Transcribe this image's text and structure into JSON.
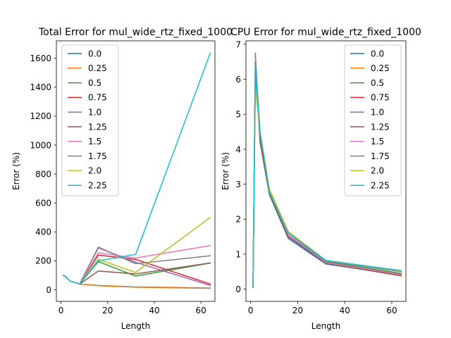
{
  "chart_data": [
    {
      "type": "line",
      "title": "Total Error for mul_wide_rtz_fixed_1000",
      "xlabel": "Length",
      "ylabel": "Error (%)",
      "xlim": [
        -2,
        66
      ],
      "ylim": [
        -80,
        1720
      ],
      "xticks": [
        0,
        20,
        40,
        60
      ],
      "yticks": [
        0,
        200,
        400,
        600,
        800,
        1000,
        1200,
        1400,
        1600
      ],
      "legend_position": "top-left",
      "x": [
        1,
        2,
        4,
        8,
        16,
        32,
        64
      ],
      "series": [
        {
          "name": "0.0",
          "color": "#1f77b4",
          "values": [
            100,
            90,
            60,
            40,
            30,
            20,
            12
          ]
        },
        {
          "name": "0.25",
          "color": "#ff7f0e",
          "values": [
            100,
            90,
            60,
            40,
            28,
            18,
            10
          ]
        },
        {
          "name": "0.5",
          "color": "#2ca02c",
          "values": [
            100,
            90,
            60,
            40,
            195,
            95,
            185
          ]
        },
        {
          "name": "0.75",
          "color": "#d62728",
          "values": [
            100,
            90,
            60,
            40,
            240,
            210,
            40
          ]
        },
        {
          "name": "1.0",
          "color": "#9467bd",
          "values": [
            100,
            90,
            60,
            40,
            290,
            190,
            30
          ]
        },
        {
          "name": "1.25",
          "color": "#8c564b",
          "values": [
            100,
            90,
            60,
            40,
            130,
            110,
            185
          ]
        },
        {
          "name": "1.5",
          "color": "#e377c2",
          "values": [
            100,
            90,
            60,
            40,
            255,
            220,
            305
          ]
        },
        {
          "name": "1.75",
          "color": "#7f7f7f",
          "values": [
            100,
            90,
            60,
            40,
            295,
            180,
            235
          ]
        },
        {
          "name": "2.0",
          "color": "#bcbd22",
          "values": [
            100,
            90,
            60,
            40,
            210,
            120,
            500
          ]
        },
        {
          "name": "2.25",
          "color": "#17becf",
          "values": [
            100,
            90,
            60,
            40,
            200,
            245,
            1635
          ]
        }
      ]
    },
    {
      "type": "line",
      "title": "CPU Error for mul_wide_rtz_fixed_1000",
      "xlabel": "Length",
      "ylabel": "Error (%)",
      "xlim": [
        -2,
        66
      ],
      "ylim": [
        -0.35,
        7.1
      ],
      "xticks": [
        0,
        20,
        40,
        60
      ],
      "yticks": [
        0,
        1,
        2,
        3,
        4,
        5,
        6,
        7
      ],
      "legend_position": "top-right",
      "x": [
        1,
        2,
        4,
        8,
        16,
        32,
        64
      ],
      "series": [
        {
          "name": "0.0",
          "color": "#1f77b4",
          "values": [
            0.05,
            6.3,
            4.3,
            2.7,
            1.45,
            0.72,
            0.4
          ]
        },
        {
          "name": "0.25",
          "color": "#ff7f0e",
          "values": [
            0.05,
            6.3,
            4.3,
            2.8,
            1.5,
            0.75,
            0.4
          ]
        },
        {
          "name": "0.5",
          "color": "#2ca02c",
          "values": [
            0.05,
            6.2,
            4.4,
            2.8,
            1.6,
            0.78,
            0.45
          ]
        },
        {
          "name": "0.75",
          "color": "#d62728",
          "values": [
            0.05,
            6.5,
            4.3,
            2.7,
            1.5,
            0.75,
            0.42
          ]
        },
        {
          "name": "1.0",
          "color": "#9467bd",
          "values": [
            0.05,
            6.75,
            4.4,
            2.7,
            1.5,
            0.76,
            0.42
          ]
        },
        {
          "name": "1.25",
          "color": "#8c564b",
          "values": [
            0.05,
            6.5,
            4.2,
            2.7,
            1.5,
            0.74,
            0.38
          ]
        },
        {
          "name": "1.5",
          "color": "#e377c2",
          "values": [
            0.05,
            6.6,
            4.5,
            2.8,
            1.55,
            0.76,
            0.42
          ]
        },
        {
          "name": "1.75",
          "color": "#7f7f7f",
          "values": [
            0.05,
            6.5,
            4.4,
            2.8,
            1.6,
            0.8,
            0.5
          ]
        },
        {
          "name": "2.0",
          "color": "#bcbd22",
          "values": [
            0.05,
            5.8,
            4.5,
            2.85,
            1.65,
            0.82,
            0.52
          ]
        },
        {
          "name": "2.25",
          "color": "#17becf",
          "values": [
            0.05,
            6.35,
            4.5,
            2.75,
            1.6,
            0.82,
            0.53
          ]
        }
      ]
    }
  ]
}
